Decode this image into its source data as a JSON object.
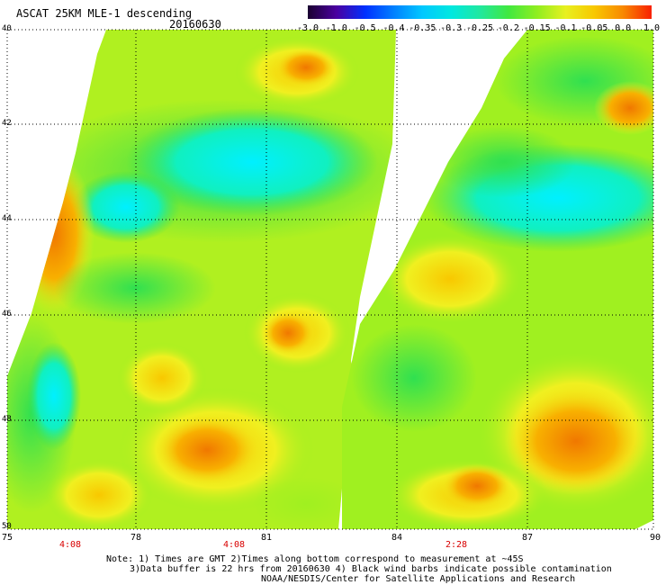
{
  "header": {
    "title": "ASCAT 25KM MLE-1 descending",
    "date": "20160630"
  },
  "colorbar": {
    "labels": [
      "-3.0",
      "-1.0",
      "-0.5",
      "-0.4",
      "-0.35",
      "-0.3",
      "-0.25",
      "-0.2",
      "-0.15",
      "-0.1",
      "-0.05",
      "0.0",
      "1.0"
    ],
    "colors": [
      "#1a0030",
      "#4a00a0",
      "#0030ff",
      "#0080ff",
      "#00c8ff",
      "#00e8e0",
      "#20e8a0",
      "#40e840",
      "#90ee20",
      "#e8f020",
      "#f8c800",
      "#f88800",
      "#f82000"
    ]
  },
  "map": {
    "lat_labels": [
      "40",
      "42",
      "44",
      "46",
      "48",
      "50"
    ],
    "lon_labels": [
      "75",
      "78",
      "81",
      "84",
      "87",
      "90"
    ],
    "time_labels": [
      "4:08",
      "4:08",
      "2:28"
    ],
    "palette": {
      "cyan": "#00f0f0",
      "green": "#30e050",
      "lime": "#a0f020",
      "yellow": "#f0f020",
      "orange": "#f8a800",
      "dark_orange": "#f07800"
    }
  },
  "notes": {
    "line1": "Note: 1) Times are GMT 2)Times along bottom correspond to measurement at ~45S",
    "line2": "3)Data buffer is 22 hrs from 20160630 4) Black wind barbs indicate possible contamination",
    "line3": "NOAA/NESDIS/Center for Satellite Applications and Research"
  }
}
